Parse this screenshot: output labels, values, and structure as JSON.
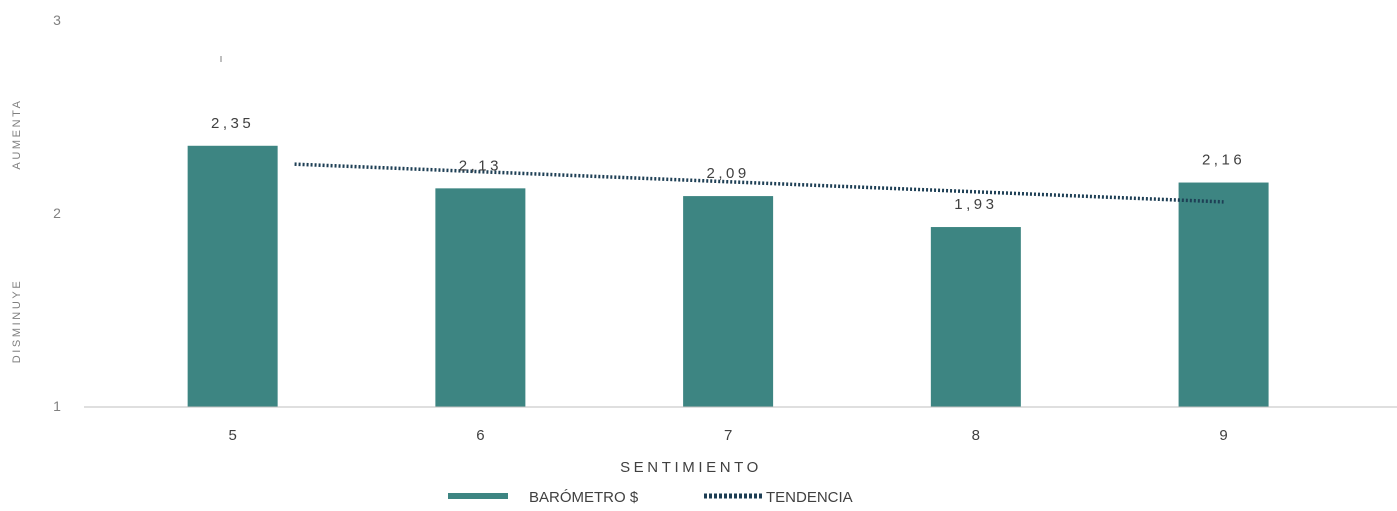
{
  "chart_data": {
    "type": "bar",
    "title": "",
    "xlabel": "SENTIMIENTO",
    "ylabel_top": "AUMENTA",
    "ylabel_bottom": "DISMINUYE",
    "categories": [
      "5",
      "6",
      "7",
      "8",
      "9"
    ],
    "x_positions": [
      5,
      6,
      7,
      8,
      9
    ],
    "series": [
      {
        "name": "BARÓMETRO $",
        "type": "bar",
        "color": "#3d8582",
        "values": [
          2.35,
          2.13,
          2.09,
          1.93,
          2.16
        ],
        "labels": [
          "2,35",
          "2,13",
          "2,09",
          "1,93",
          "2,16"
        ]
      },
      {
        "name": "TENDENCIA",
        "type": "line",
        "style": "dotted",
        "color": "#1e3f55",
        "start": [
          5.25,
          2.255
        ],
        "end": [
          9,
          2.06
        ]
      }
    ],
    "ylim": [
      1,
      3
    ],
    "yticks": [
      "1",
      "2",
      "3"
    ],
    "xlim": [
      4.4,
      9.7
    ],
    "grid": false,
    "legend_position": "bottom"
  }
}
